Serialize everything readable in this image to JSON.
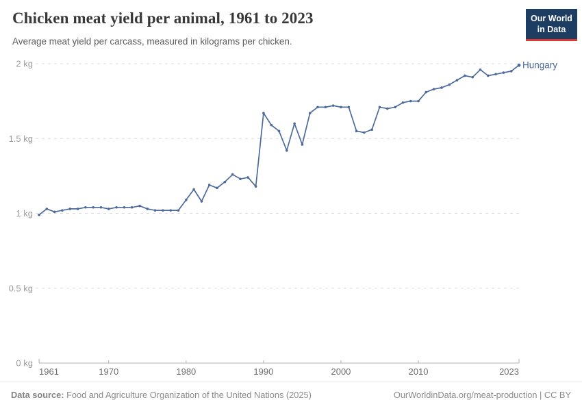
{
  "header": {
    "title": "Chicken meat yield per animal, 1961 to 2023",
    "subtitle": "Average meat yield per carcass, measured in kilograms per chicken."
  },
  "logo": {
    "line1": "Our World",
    "line2": "in Data",
    "bg_color": "#1d3d63",
    "accent_color": "#dc3932"
  },
  "chart_data": {
    "type": "line",
    "title": "Chicken meat yield per animal, 1961 to 2023",
    "subtitle": "Average meat yield per carcass, measured in kilograms per chicken.",
    "unit": "kg",
    "xlim": [
      1961,
      2023
    ],
    "ylim": [
      0,
      2
    ],
    "grid": true,
    "legend_position": "end-of-line",
    "x_ticks": [
      1961,
      1970,
      1980,
      1990,
      2000,
      2010,
      2023
    ],
    "y_ticks": [
      0,
      0.5,
      1,
      1.5,
      2
    ],
    "y_tick_labels": [
      "0 kg",
      "0.5 kg",
      "1 kg",
      "1.5 kg",
      "2 kg"
    ],
    "series": [
      {
        "name": "Hungary",
        "color": "#4C6A9C",
        "x": [
          1961,
          1962,
          1963,
          1964,
          1965,
          1966,
          1967,
          1968,
          1969,
          1970,
          1971,
          1972,
          1973,
          1974,
          1975,
          1976,
          1977,
          1978,
          1979,
          1980,
          1981,
          1982,
          1983,
          1984,
          1985,
          1986,
          1987,
          1988,
          1989,
          1990,
          1991,
          1992,
          1993,
          1994,
          1995,
          1996,
          1997,
          1998,
          1999,
          2000,
          2001,
          2002,
          2003,
          2004,
          2005,
          2006,
          2007,
          2008,
          2009,
          2010,
          2011,
          2012,
          2013,
          2014,
          2015,
          2016,
          2017,
          2018,
          2019,
          2020,
          2021,
          2022,
          2023
        ],
        "values": [
          0.99,
          1.03,
          1.01,
          1.02,
          1.03,
          1.03,
          1.04,
          1.04,
          1.04,
          1.03,
          1.04,
          1.04,
          1.04,
          1.05,
          1.03,
          1.02,
          1.02,
          1.02,
          1.02,
          1.09,
          1.16,
          1.08,
          1.19,
          1.17,
          1.21,
          1.26,
          1.23,
          1.24,
          1.18,
          1.67,
          1.59,
          1.55,
          1.42,
          1.6,
          1.46,
          1.67,
          1.71,
          1.71,
          1.72,
          1.71,
          1.71,
          1.55,
          1.54,
          1.56,
          1.71,
          1.7,
          1.71,
          1.74,
          1.75,
          1.75,
          1.81,
          1.83,
          1.84,
          1.86,
          1.89,
          1.92,
          1.91,
          1.96,
          1.92,
          1.93,
          1.94,
          1.95,
          1.99
        ]
      }
    ]
  },
  "footer": {
    "source_label": "Data source:",
    "source_text": " Food and Agriculture Organization of the United Nations (2025)",
    "link": "OurWorldinData.org/meat-production",
    "separator": " | ",
    "license": "CC BY"
  }
}
